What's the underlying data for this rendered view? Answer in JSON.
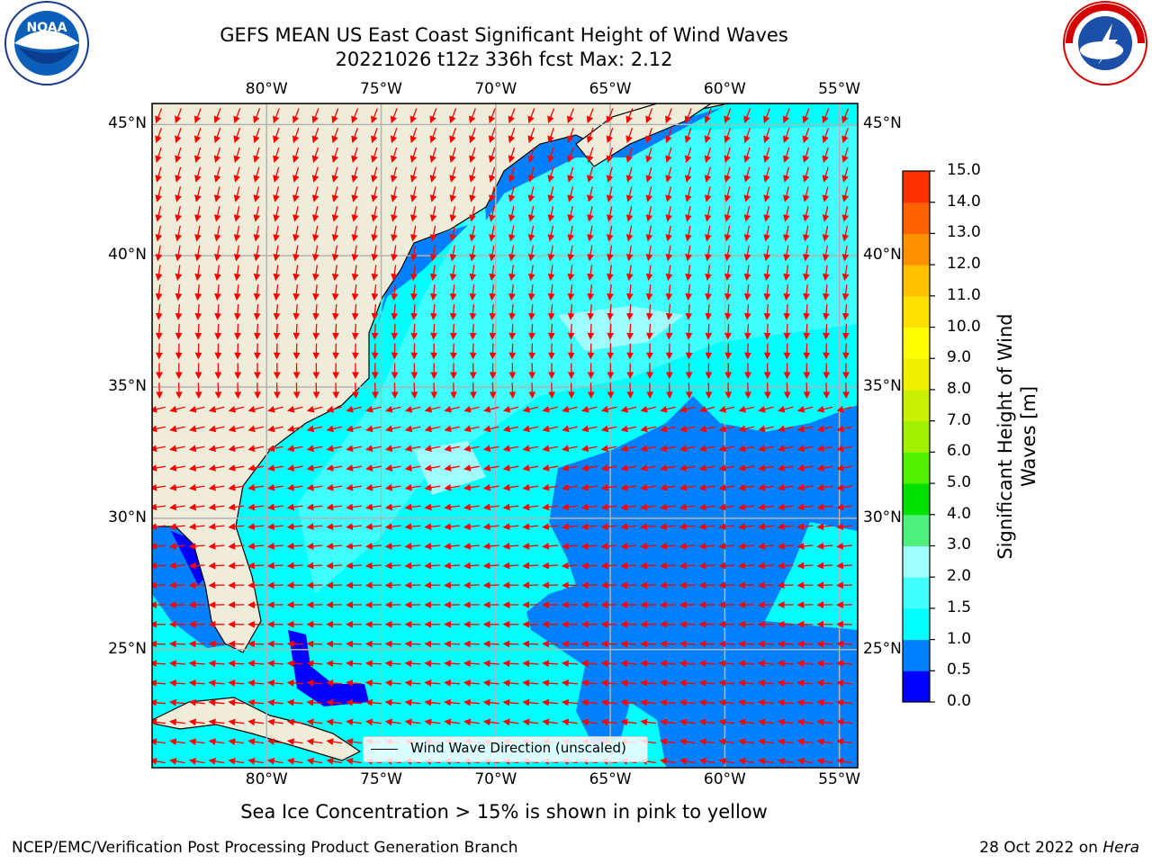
{
  "header": {
    "title_line1": "GEFS MEAN US East Coast Significant Height of Wind Waves",
    "title_line2": "20221026 t12z 336h fcst   Max: 2.12"
  },
  "logos": {
    "left": "noaa-logo",
    "right": "nws-logo"
  },
  "map": {
    "lon_labels": [
      "80°W",
      "75°W",
      "70°W",
      "65°W",
      "60°W",
      "55°W"
    ],
    "lat_labels": [
      "45°N",
      "40°N",
      "35°N",
      "30°N",
      "25°N"
    ],
    "lon_values": [
      -80,
      -75,
      -70,
      -65,
      -60,
      -55
    ],
    "lat_values": [
      45,
      40,
      35,
      30,
      25
    ],
    "extent": {
      "lon_min": -85,
      "lon_max": -54.2,
      "lat_min": 20.5,
      "lat_max": 45.8
    },
    "colors": {
      "land": "#efedd9",
      "ocean_low": "#00ffff",
      "ocean_mid": "#0080ff",
      "arrow": "#ff0000",
      "grid": "#b3b3b3"
    },
    "legend": {
      "label": "Wind Wave Direction (unscaled)"
    }
  },
  "colorbar": {
    "title_line1": "Significant Height of Wind",
    "title_line2": "Waves [m]",
    "labels": [
      "15.0",
      "14.0",
      "13.0",
      "12.0",
      "11.0",
      "10.0",
      "9.0",
      "8.0",
      "7.0",
      "6.0",
      "5.0",
      "4.0",
      "3.0",
      "2.0",
      "1.5",
      "1.0",
      "0.5",
      "0.0"
    ],
    "colors": [
      "#0000ff",
      "#0080ff",
      "#00ffff",
      "#40ffff",
      "#a0ffff",
      "#50f080",
      "#00e000",
      "#50f000",
      "#a0f000",
      "#c8f000",
      "#f0f000",
      "#ffff00",
      "#ffe000",
      "#ffc000",
      "#ff9000",
      "#ff6000",
      "#ff3000",
      "#ff0000"
    ]
  },
  "subtitle": "Sea Ice Concentration > 15% is shown in pink to yellow",
  "footer": {
    "left": "NCEP/EMC/Verification Post Processing Product Generation Branch",
    "right_prefix": "28 Oct 2022 on ",
    "right_host": "Hera"
  }
}
